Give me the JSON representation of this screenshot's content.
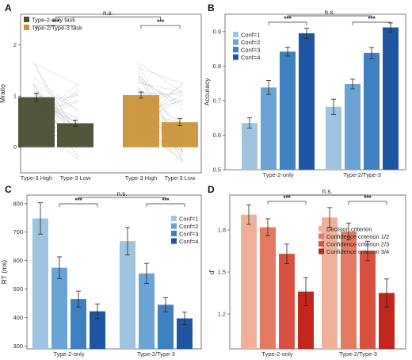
{
  "panels": {
    "A": {
      "letter": "A"
    },
    "B": {
      "letter": "B"
    },
    "C": {
      "letter": "C"
    },
    "D": {
      "letter": "D"
    }
  },
  "chart_data": [
    {
      "id": "A",
      "type": "bar",
      "ylabel": "Mratio",
      "ylim": [
        -0.5,
        2.6
      ],
      "yticks": [
        0,
        1,
        2
      ],
      "categories": [
        "Type-3 High",
        "Type-3 Low",
        "Type-3 High",
        "Type-3 Low"
      ],
      "groups": [
        "Type-2-only task",
        "Type-2/Type-3 task"
      ],
      "values": [
        0.98,
        0.47,
        1.02,
        0.49
      ],
      "errors": [
        0.08,
        0.06,
        0.06,
        0.07
      ],
      "colors": [
        "#4a4d33",
        "#4a4d33",
        "#c9933a",
        "#c9933a"
      ],
      "legend": [
        "Type-2-only task",
        "Type-2/Type-3 task"
      ],
      "legend_colors": [
        "#4a4d33",
        "#c9933a"
      ],
      "legend_position": "top-left",
      "sig_within": [
        "***",
        "***"
      ],
      "sig_between": "n.s.",
      "individual_lines": true
    },
    {
      "id": "B",
      "type": "bar",
      "ylabel": "Accuracy",
      "ylim": [
        0.5,
        0.95
      ],
      "yticks": [
        0.5,
        0.6,
        0.7,
        0.8,
        0.9
      ],
      "categories": [
        "Type-2-only",
        "Type-2/Type-3"
      ],
      "series": [
        {
          "name": "Conf=1",
          "values": [
            0.635,
            0.682
          ],
          "errors": [
            0.015,
            0.022
          ]
        },
        {
          "name": "Conf=2",
          "values": [
            0.738,
            0.748
          ],
          "errors": [
            0.02,
            0.014
          ]
        },
        {
          "name": "Conf=3",
          "values": [
            0.842,
            0.838
          ],
          "errors": [
            0.013,
            0.016
          ]
        },
        {
          "name": "Conf=4",
          "values": [
            0.895,
            0.912
          ],
          "errors": [
            0.015,
            0.013
          ]
        }
      ],
      "colors": [
        "#9fc4e0",
        "#6aa3d4",
        "#3f80c0",
        "#1f56a3"
      ],
      "legend_position": "top-left",
      "sig_within": [
        "***",
        "***"
      ],
      "sig_between": "n.s."
    },
    {
      "id": "C",
      "type": "bar",
      "ylabel": "RT (ms)",
      "ylim": [
        290,
        830
      ],
      "yticks": [
        300,
        400,
        500,
        600,
        700,
        800
      ],
      "categories": [
        "Type-2-only",
        "Type-2/Type-3"
      ],
      "series": [
        {
          "name": "Conf=1",
          "values": [
            748,
            668
          ],
          "errors": [
            55,
            48
          ]
        },
        {
          "name": "Conf=2",
          "values": [
            575,
            555
          ],
          "errors": [
            38,
            35
          ]
        },
        {
          "name": "Conf=3",
          "values": [
            465,
            445
          ],
          "errors": [
            28,
            25
          ]
        },
        {
          "name": "Conf=4",
          "values": [
            422,
            397
          ],
          "errors": [
            26,
            22
          ]
        }
      ],
      "colors": [
        "#9fc4e0",
        "#6aa3d4",
        "#3f80c0",
        "#1f56a3"
      ],
      "legend_position": "top-right",
      "sig_within": [
        "***",
        "***"
      ],
      "sig_between": "n.s."
    },
    {
      "id": "D",
      "type": "bar",
      "ylabel": "d'",
      "ylim": [
        0.95,
        2.05
      ],
      "yticks": [
        1.2,
        1.5,
        1.8
      ],
      "categories": [
        "Type-2-only",
        "Type-2/Type-3"
      ],
      "series": [
        {
          "name": "Decision criterion",
          "values": [
            1.91,
            1.89
          ],
          "errors": [
            0.07,
            0.07
          ]
        },
        {
          "name": "Confidence criterion 1/2",
          "values": [
            1.82,
            1.79
          ],
          "errors": [
            0.06,
            0.06
          ]
        },
        {
          "name": "Confidence criterion 2/3",
          "values": [
            1.63,
            1.65
          ],
          "errors": [
            0.07,
            0.07
          ]
        },
        {
          "name": "Confidence criterion 3/4",
          "values": [
            1.36,
            1.35
          ],
          "errors": [
            0.1,
            0.1
          ]
        }
      ],
      "colors": [
        "#f2b09a",
        "#e57a62",
        "#d8503f",
        "#c3261d"
      ],
      "legend_position": "top-right",
      "sig_within": [
        "***",
        "***"
      ],
      "sig_between": "n.s."
    }
  ]
}
